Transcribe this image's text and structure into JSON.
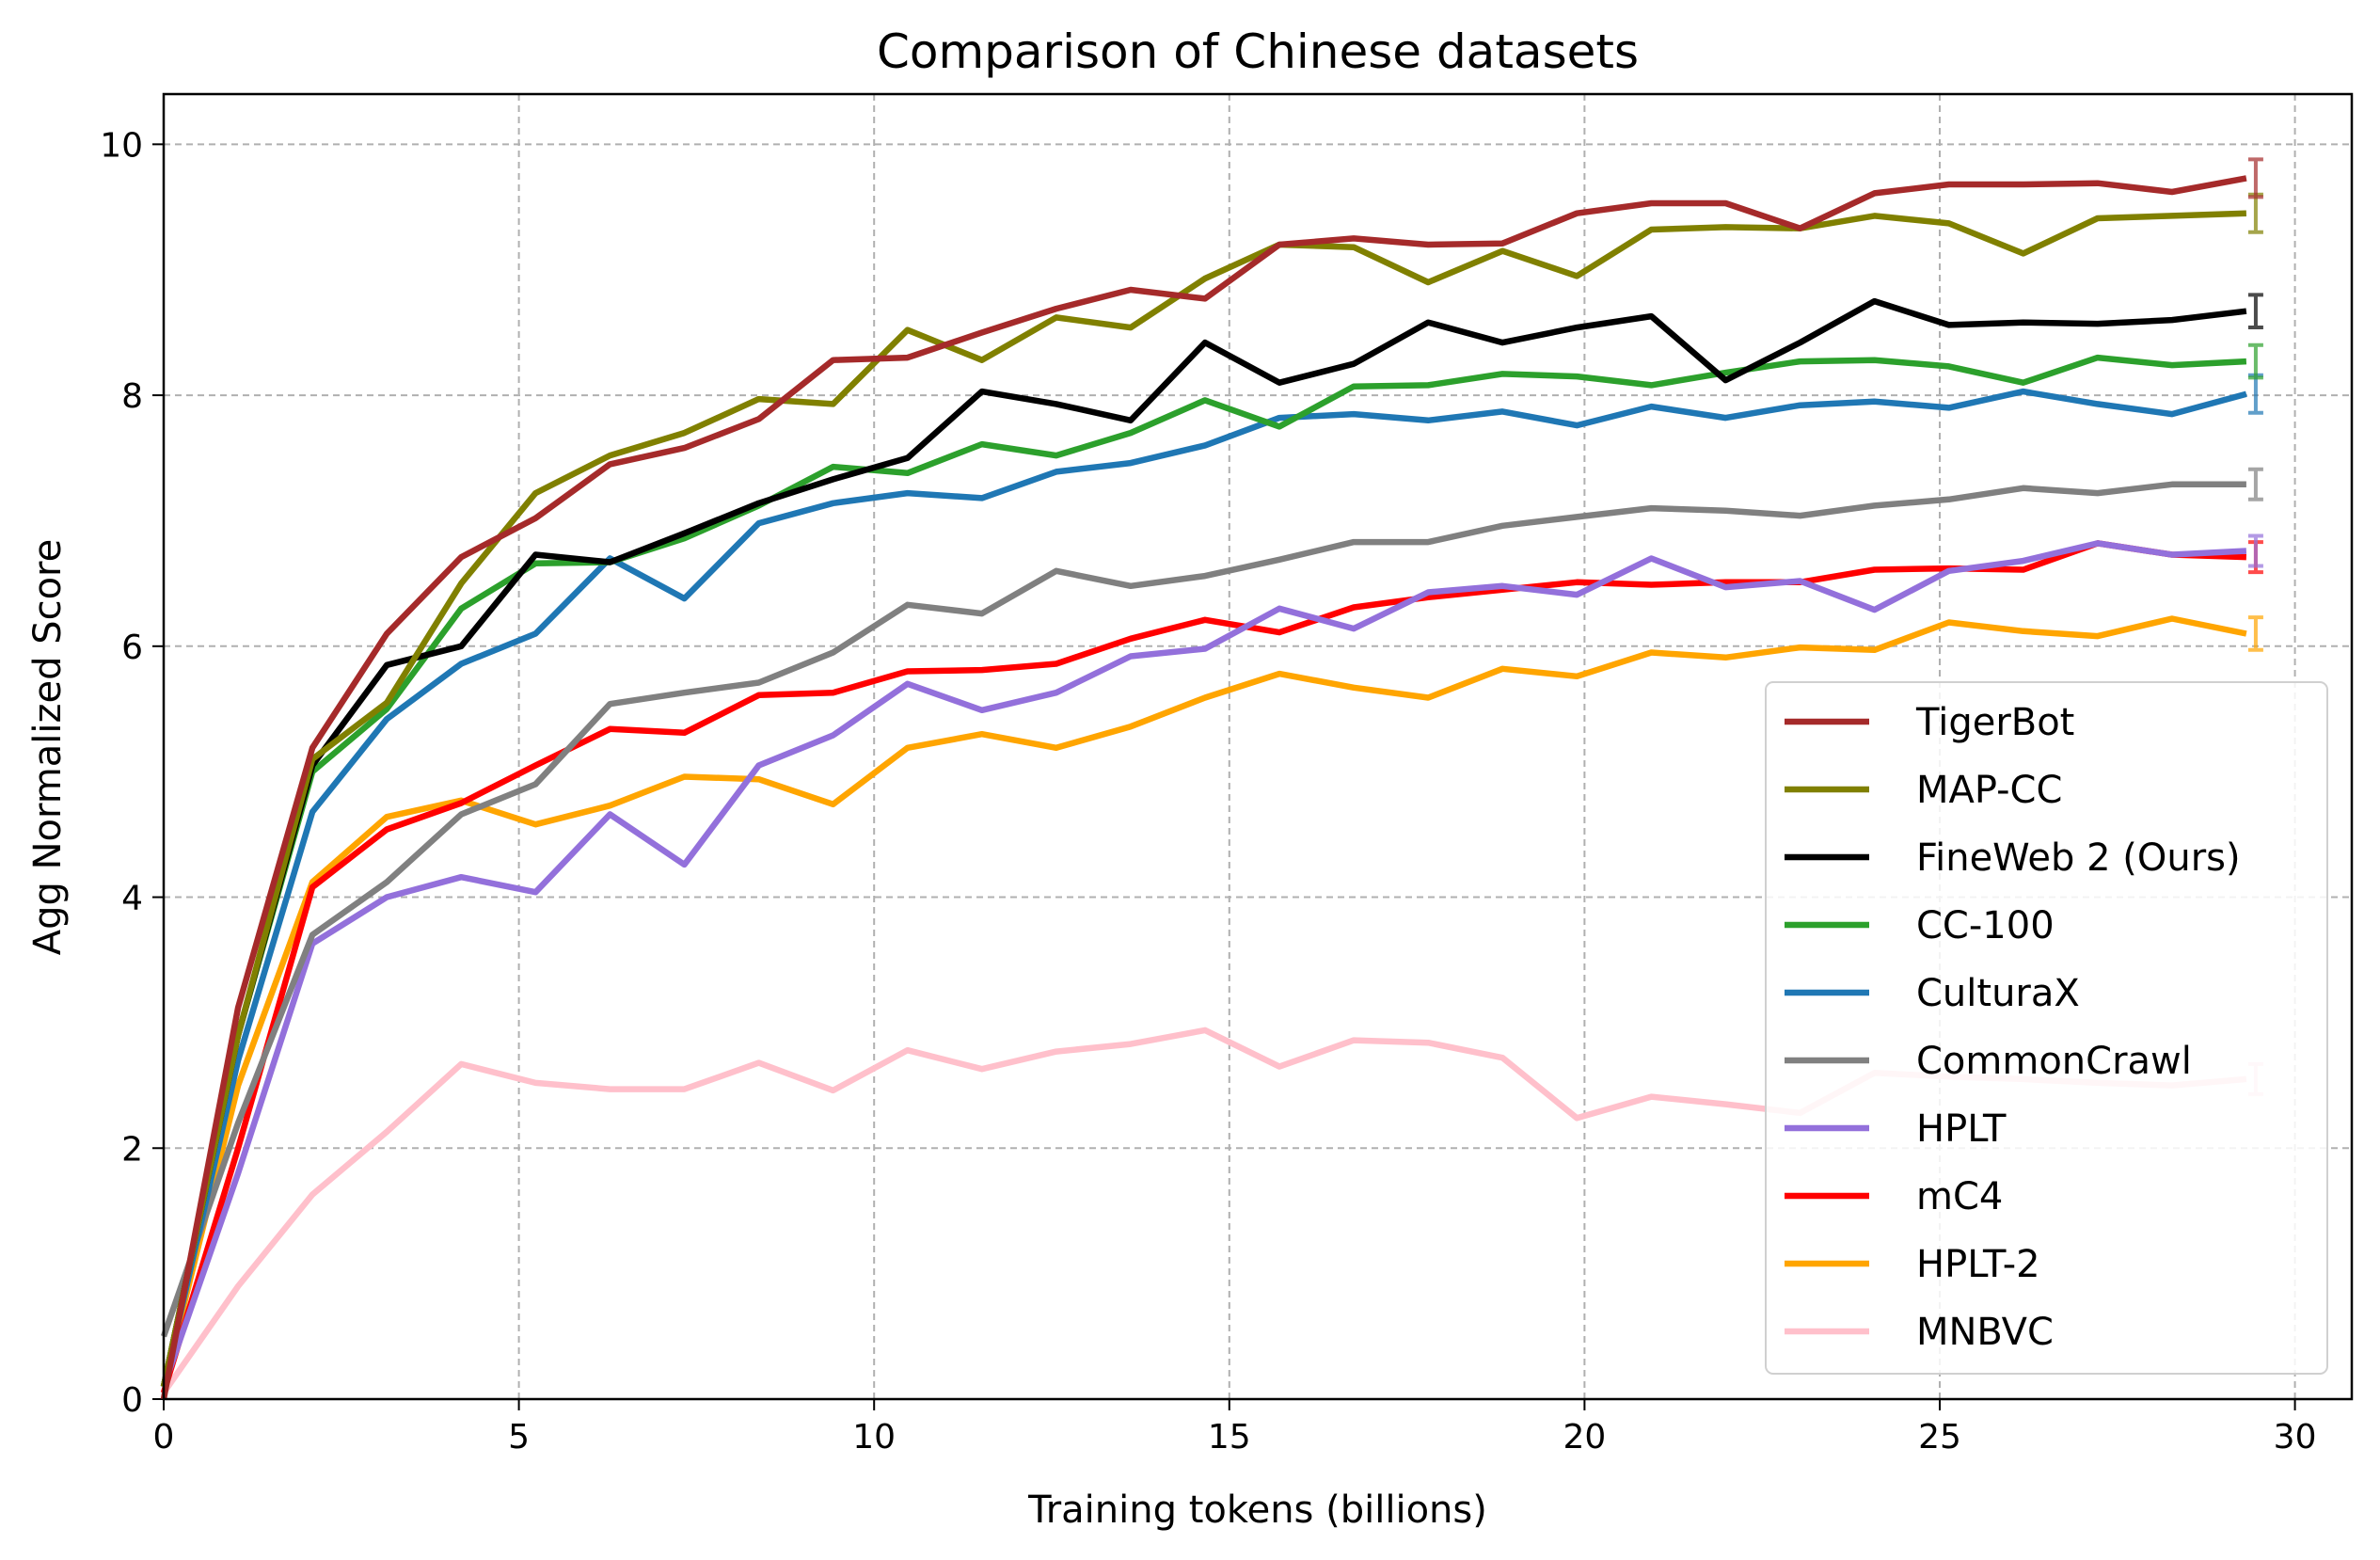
{
  "chart_data": {
    "type": "line",
    "title": "Comparison of Chinese datasets",
    "xlabel": "Training tokens (billions)",
    "ylabel": "Agg Normalized Score",
    "xlim": [
      0,
      30.8
    ],
    "ylim": [
      0,
      10.4
    ],
    "xticks": [
      0,
      5,
      10,
      15,
      20,
      25,
      30
    ],
    "yticks": [
      0,
      2,
      4,
      6,
      8,
      10
    ],
    "grid": true,
    "legend_position": "bottom-right",
    "x_step": 1.047,
    "series": [
      {
        "name": "TigerBot",
        "color": "#a52a2a",
        "error": 0.15,
        "values": [
          0,
          3.12,
          5.19,
          6.1,
          6.71,
          7.02,
          7.45,
          7.58,
          7.81,
          8.28,
          8.3,
          8.5,
          8.69,
          8.84,
          8.77,
          9.2,
          9.25,
          9.2,
          9.21,
          9.45,
          9.53,
          9.53,
          9.33,
          9.61,
          9.68,
          9.68,
          9.69,
          9.62,
          9.73
        ]
      },
      {
        "name": "MAP-CC",
        "color": "#808000",
        "error": 0.15,
        "values": [
          0.1,
          2.9,
          5.1,
          5.55,
          6.5,
          7.22,
          7.52,
          7.7,
          7.97,
          7.93,
          8.52,
          8.28,
          8.62,
          8.54,
          8.93,
          9.2,
          9.18,
          8.9,
          9.15,
          8.95,
          9.32,
          9.34,
          9.33,
          9.43,
          9.37,
          9.13,
          9.41,
          9.43,
          9.45
        ]
      },
      {
        "name": "FineWeb 2 (Ours)",
        "color": "#000000",
        "error": 0.13,
        "values": [
          0.1,
          2.9,
          5.05,
          5.85,
          6.0,
          6.73,
          6.67,
          6.9,
          7.14,
          7.33,
          7.5,
          8.03,
          7.93,
          7.8,
          8.42,
          8.1,
          8.25,
          8.58,
          8.42,
          8.54,
          8.63,
          8.12,
          8.42,
          8.75,
          8.56,
          8.58,
          8.57,
          8.6,
          8.67
        ]
      },
      {
        "name": "CC-100",
        "color": "#2ca02c",
        "error": 0.13,
        "values": [
          0.1,
          2.9,
          5.0,
          5.5,
          6.3,
          6.66,
          6.67,
          6.86,
          7.12,
          7.43,
          7.38,
          7.61,
          7.52,
          7.7,
          7.96,
          7.75,
          8.07,
          8.08,
          8.17,
          8.15,
          8.08,
          8.18,
          8.27,
          8.28,
          8.23,
          8.1,
          8.3,
          8.24,
          8.27
        ]
      },
      {
        "name": "CulturaX",
        "color": "#1f77b4",
        "error": 0.15,
        "values": [
          0.1,
          2.7,
          4.68,
          5.42,
          5.86,
          6.1,
          6.7,
          6.38,
          6.98,
          7.14,
          7.22,
          7.18,
          7.39,
          7.46,
          7.6,
          7.82,
          7.85,
          7.8,
          7.87,
          7.76,
          7.91,
          7.82,
          7.92,
          7.95,
          7.9,
          8.03,
          7.93,
          7.85,
          8.01
        ]
      },
      {
        "name": "CommonCrawl",
        "color": "#808080",
        "error": 0.12,
        "values": [
          0.5,
          2.2,
          3.7,
          4.12,
          4.66,
          4.9,
          5.54,
          5.63,
          5.71,
          5.95,
          6.33,
          6.26,
          6.6,
          6.48,
          6.56,
          6.69,
          6.83,
          6.83,
          6.96,
          7.03,
          7.1,
          7.08,
          7.04,
          7.12,
          7.17,
          7.26,
          7.22,
          7.29,
          7.29
        ]
      },
      {
        "name": "HPLT",
        "color": "#9370db",
        "error": 0.12,
        "values": [
          0.1,
          1.8,
          3.63,
          4.0,
          4.16,
          4.04,
          4.66,
          4.26,
          5.05,
          5.29,
          5.7,
          5.49,
          5.63,
          5.92,
          5.98,
          6.3,
          6.14,
          6.43,
          6.48,
          6.41,
          6.7,
          6.47,
          6.52,
          6.29,
          6.6,
          6.68,
          6.82,
          6.73,
          6.76
        ]
      },
      {
        "name": "mC4",
        "color": "#ff0000",
        "error": 0.12,
        "values": [
          0.05,
          2.0,
          4.08,
          4.54,
          4.75,
          5.05,
          5.34,
          5.31,
          5.61,
          5.63,
          5.8,
          5.81,
          5.86,
          6.06,
          6.21,
          6.11,
          6.31,
          6.39,
          6.45,
          6.51,
          6.49,
          6.51,
          6.51,
          6.61,
          6.62,
          6.61,
          6.82,
          6.73,
          6.71
        ]
      },
      {
        "name": "HPLT-2",
        "color": "#ffa500",
        "error": 0.13,
        "values": [
          0.1,
          2.5,
          4.12,
          4.64,
          4.77,
          4.58,
          4.73,
          4.96,
          4.94,
          4.74,
          5.19,
          5.3,
          5.19,
          5.36,
          5.59,
          5.78,
          5.67,
          5.59,
          5.82,
          5.76,
          5.95,
          5.91,
          5.99,
          5.97,
          6.19,
          6.12,
          6.08,
          6.22,
          6.1
        ]
      },
      {
        "name": "MNBVC",
        "color": "#ffc0cb",
        "error": 0.12,
        "values": [
          0.05,
          0.9,
          1.63,
          2.13,
          2.67,
          2.52,
          2.47,
          2.47,
          2.68,
          2.46,
          2.78,
          2.63,
          2.77,
          2.83,
          2.94,
          2.65,
          2.86,
          2.84,
          2.72,
          2.24,
          2.41,
          2.35,
          2.28,
          2.6,
          2.57,
          2.55,
          2.52,
          2.5,
          2.55
        ]
      }
    ]
  }
}
